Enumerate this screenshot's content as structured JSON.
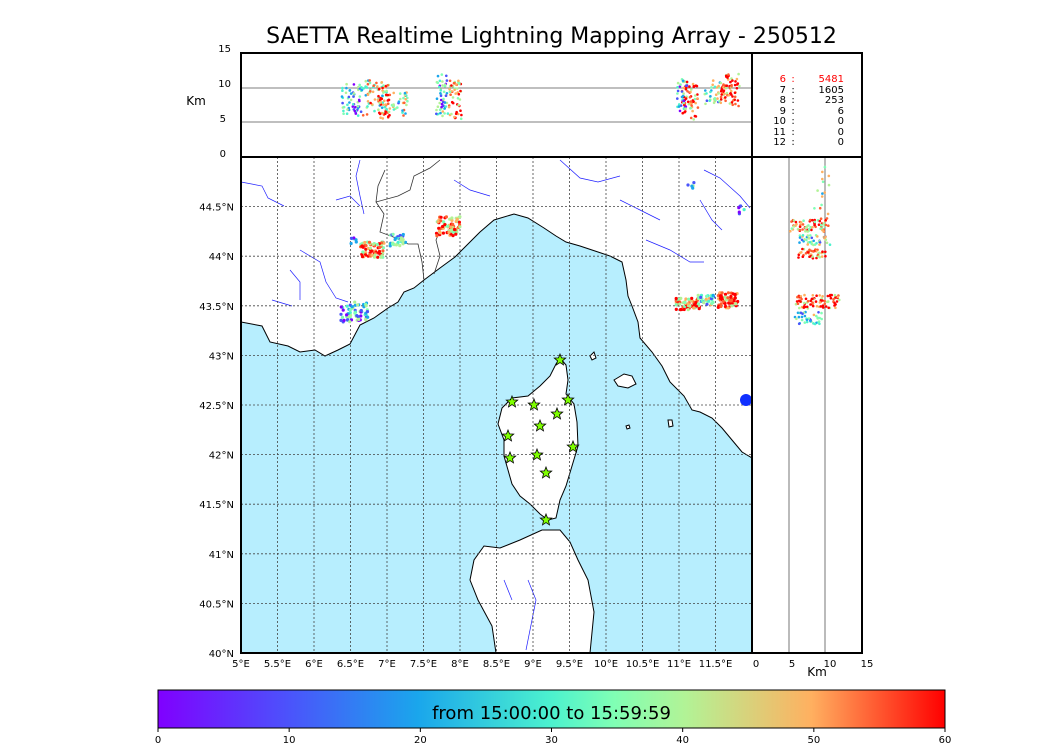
{
  "title": "SAETTA Realtime Lightning Mapping Array - 250512",
  "top_panel": {
    "ylabel": "Km",
    "yticks": [
      "15",
      "10",
      "5",
      "0"
    ]
  },
  "side_panel": {
    "xlabel": "Km",
    "xticks": [
      "0",
      "5",
      "10",
      "15"
    ]
  },
  "map": {
    "lon_ticks": [
      "5°E",
      "5.5°E",
      "6°E",
      "6.5°E",
      "7°E",
      "7.5°E",
      "8°E",
      "8.5°E",
      "9°E",
      "9.5°E",
      "10°E",
      "10.5°E",
      "11°E",
      "11.5°E"
    ],
    "lat_ticks": [
      "44.5°N",
      "44°N",
      "43.5°N",
      "43°N",
      "42.5°N",
      "42°N",
      "41.5°N",
      "41°N",
      "40.5°N",
      "40°N"
    ],
    "extent": {
      "lon": [
        5,
        12
      ],
      "lat": [
        40,
        45
      ]
    },
    "colors": {
      "sea": "#b7eefe",
      "land": "#ffffff",
      "coast": "#000000",
      "rivers": "#2020ff",
      "stations": "#7fff00"
    },
    "station_count": 12
  },
  "altitude_stats": [
    {
      "km": "6",
      "sep": ":",
      "count": "5481",
      "highlight": true
    },
    {
      "km": "7",
      "sep": ":",
      "count": "1605",
      "highlight": false
    },
    {
      "km": "8",
      "sep": ":",
      "count": "253",
      "highlight": false
    },
    {
      "km": "9",
      "sep": ":",
      "count": "6",
      "highlight": false
    },
    {
      "km": "10",
      "sep": ":",
      "count": "0",
      "highlight": false
    },
    {
      "km": "11",
      "sep": ":",
      "count": "0",
      "highlight": false
    },
    {
      "km": "12",
      "sep": ":",
      "count": "0",
      "highlight": false
    }
  ],
  "colorbar": {
    "label": "from 15:00:00 to 15:59:59",
    "ticks": [
      "0",
      "10",
      "20",
      "30",
      "40",
      "50",
      "60"
    ],
    "range": [
      0,
      60
    ],
    "colormap": "rainbow"
  }
}
